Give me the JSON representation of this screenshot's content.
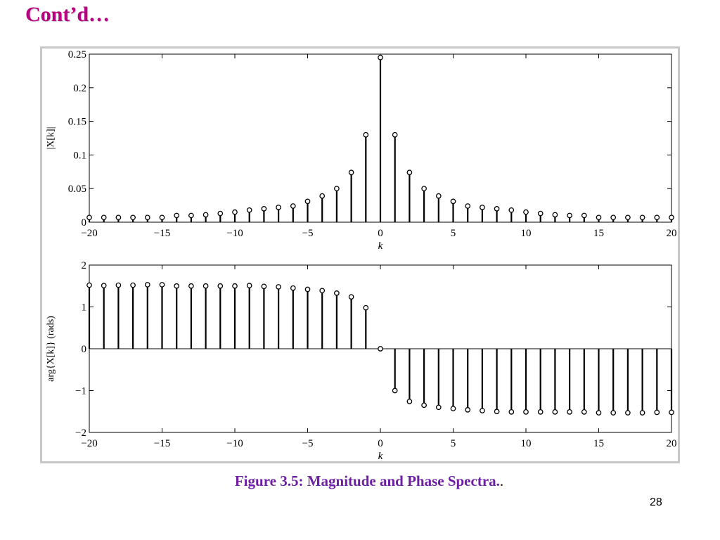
{
  "slide": {
    "title": "Cont’d…",
    "caption": "Figure 3.5: Magnitude and Phase Spectra.",
    "caption_trailing_dot": ".",
    "page_number": "28"
  },
  "chart_data": [
    {
      "type": "stem",
      "xlabel": "k",
      "ylabel": "|X[k]|",
      "xlim": [
        -20,
        20
      ],
      "ylim": [
        0,
        0.25
      ],
      "xticks": [
        -20,
        -15,
        -10,
        -5,
        0,
        5,
        10,
        15,
        20
      ],
      "xtick_labels": [
        "−20",
        "−15",
        "−10",
        "−5",
        "0",
        "5",
        "10",
        "15",
        "20"
      ],
      "yticks": [
        0,
        0.05,
        0.1,
        0.15,
        0.2,
        0.25
      ],
      "ytick_labels": [
        "0",
        "0.05",
        "0.1",
        "0.15",
        "0.2",
        "0.25"
      ],
      "grid": false,
      "marker_color": "#000000",
      "x": [
        -20,
        -19,
        -18,
        -17,
        -16,
        -15,
        -14,
        -13,
        -12,
        -11,
        -10,
        -9,
        -8,
        -7,
        -6,
        -5,
        -4,
        -3,
        -2,
        -1,
        0,
        1,
        2,
        3,
        4,
        5,
        6,
        7,
        8,
        9,
        10,
        11,
        12,
        13,
        14,
        15,
        16,
        17,
        18,
        19,
        20
      ],
      "y": [
        0.007,
        0.007,
        0.007,
        0.007,
        0.007,
        0.007,
        0.01,
        0.01,
        0.011,
        0.013,
        0.015,
        0.018,
        0.02,
        0.022,
        0.024,
        0.031,
        0.039,
        0.05,
        0.074,
        0.13,
        0.245,
        0.13,
        0.074,
        0.05,
        0.039,
        0.031,
        0.024,
        0.022,
        0.02,
        0.018,
        0.015,
        0.013,
        0.011,
        0.01,
        0.01,
        0.007,
        0.007,
        0.007,
        0.007,
        0.007,
        0.007
      ]
    },
    {
      "type": "stem",
      "xlabel": "k",
      "ylabel": "arg{X[k]} (rads)",
      "xlim": [
        -20,
        20
      ],
      "ylim": [
        -2,
        2
      ],
      "xticks": [
        -20,
        -15,
        -10,
        -5,
        0,
        5,
        10,
        15,
        20
      ],
      "xtick_labels": [
        "−20",
        "−15",
        "−10",
        "−5",
        "0",
        "5",
        "10",
        "15",
        "20"
      ],
      "yticks": [
        -2,
        -1,
        0,
        1,
        2
      ],
      "ytick_labels": [
        "−2",
        "−1",
        "0",
        "1",
        "2"
      ],
      "grid": false,
      "marker_color": "#000000",
      "x": [
        -20,
        -19,
        -18,
        -17,
        -16,
        -15,
        -14,
        -13,
        -12,
        -11,
        -10,
        -9,
        -8,
        -7,
        -6,
        -5,
        -4,
        -3,
        -2,
        -1,
        0,
        1,
        2,
        3,
        4,
        5,
        6,
        7,
        8,
        9,
        10,
        11,
        12,
        13,
        14,
        15,
        16,
        17,
        18,
        19,
        20
      ],
      "y": [
        1.52,
        1.51,
        1.52,
        1.52,
        1.53,
        1.53,
        1.5,
        1.5,
        1.5,
        1.5,
        1.5,
        1.51,
        1.49,
        1.48,
        1.45,
        1.42,
        1.39,
        1.33,
        1.24,
        0.98,
        0,
        -1.0,
        -1.26,
        -1.35,
        -1.4,
        -1.43,
        -1.46,
        -1.48,
        -1.5,
        -1.51,
        -1.51,
        -1.51,
        -1.51,
        -1.51,
        -1.51,
        -1.53,
        -1.53,
        -1.53,
        -1.53,
        -1.52,
        -1.52
      ]
    }
  ]
}
